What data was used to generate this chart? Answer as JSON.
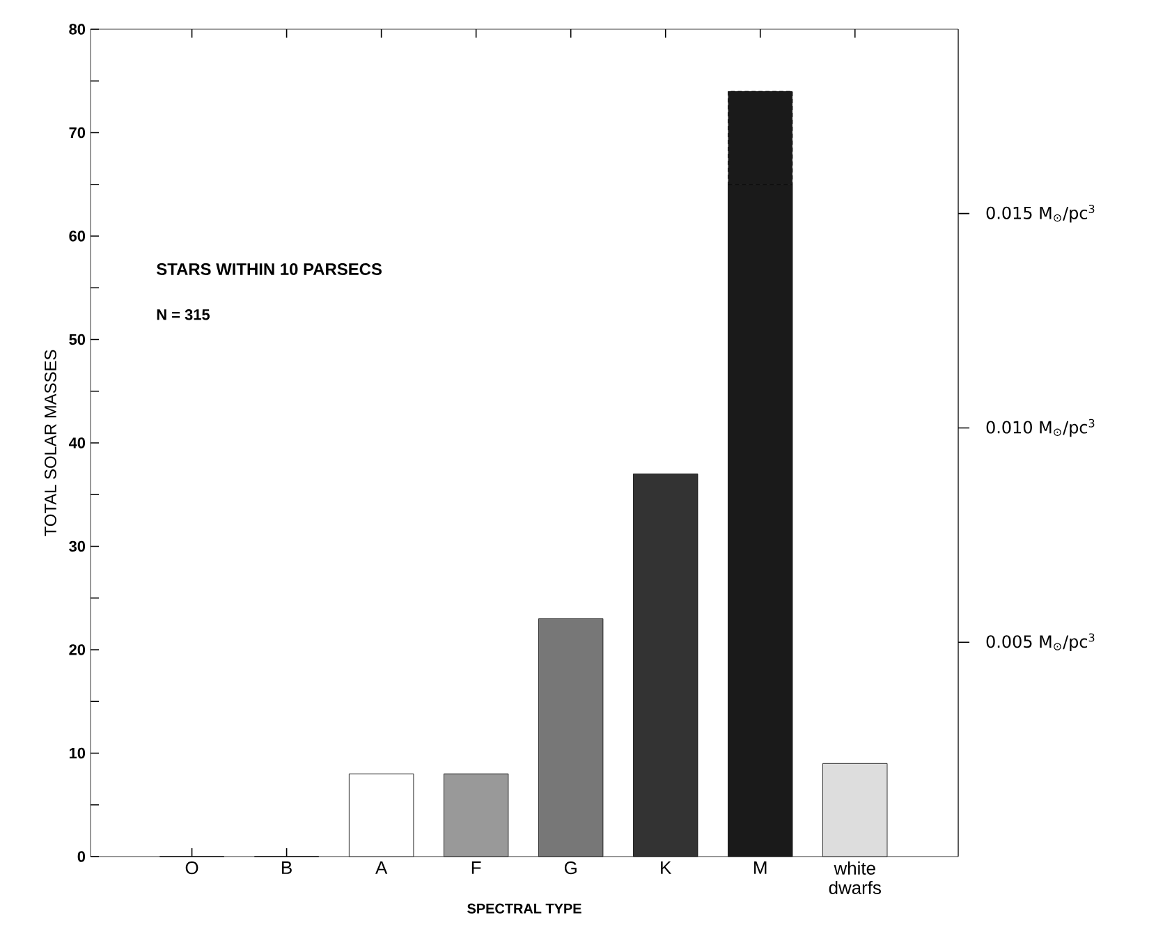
{
  "chart_data": {
    "type": "bar",
    "stacked": true,
    "categories": [
      "O",
      "B",
      "A",
      "F",
      "G",
      "K",
      "M",
      "white dwarfs"
    ],
    "series": [
      {
        "colors": [
          "#000000",
          "#000000",
          "#ffffff",
          "#999999",
          "#777777",
          "#333333",
          "#1a1a1a",
          "#dddddd"
        ],
        "values": [
          0,
          0,
          8,
          8,
          23,
          37,
          65,
          9
        ]
      },
      {
        "color": "#1a1a1a",
        "line_style": "dashed",
        "values": [
          null,
          null,
          null,
          null,
          null,
          null,
          9,
          null
        ]
      }
    ],
    "xlabel": "SPECTRAL TYPE",
    "ylabel": "TOTAL SOLAR MASSES",
    "ylim": [
      0,
      80
    ],
    "yticks": [
      0,
      {
        "value": 5,
        "label": null
      },
      10,
      {
        "value": 15,
        "label": null
      },
      20,
      {
        "value": 25,
        "label": null
      },
      30,
      {
        "value": 35,
        "label": null
      },
      40,
      {
        "value": 45,
        "label": null
      },
      50,
      {
        "value": 55,
        "label": null
      },
      60,
      {
        "value": 65,
        "label": null
      },
      70,
      {
        "value": 75,
        "label": null
      },
      80
    ],
    "y2lim": [
      0,
      0.0193
    ],
    "y2ticks": [
      0.005,
      {
        "value": 0.01,
        "label": "0.010"
      },
      0.015
    ],
    "y2label": "M$_{⊙}$/pc$^{3}$",
    "annotations": [
      "STARS WITHIN 10 PARSECS",
      "N = 315"
    ],
    "grid": false
  }
}
